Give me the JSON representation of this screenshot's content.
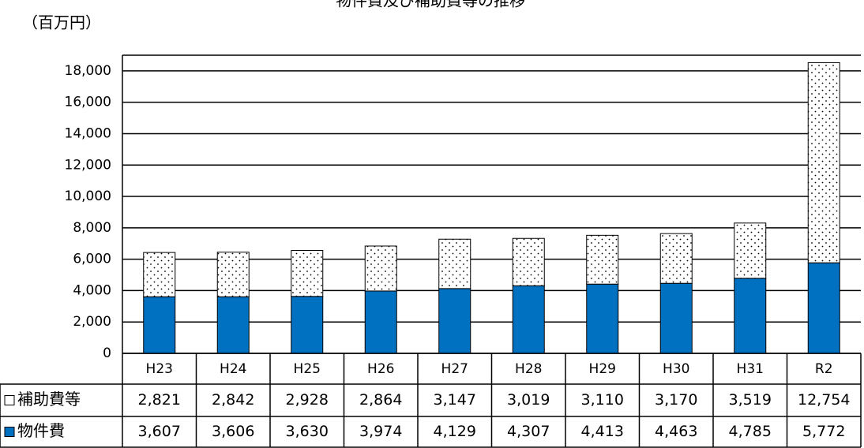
{
  "chart_data": {
    "type": "stacked_bar",
    "title": "物件費及び補助費等の推移",
    "y_label": "（百万円）",
    "categories": [
      "H23",
      "H24",
      "H25",
      "H26",
      "H27",
      "H28",
      "H29",
      "H30",
      "H31",
      "R2"
    ],
    "series": [
      {
        "name": "物件費",
        "color": "#0070c0",
        "values": [
          3607,
          3606,
          3630,
          3974,
          4129,
          4307,
          4413,
          4463,
          4785,
          5772
        ],
        "value_labels": [
          "3,607",
          "3,606",
          "3,630",
          "3,974",
          "4,129",
          "4,307",
          "4,413",
          "4,463",
          "4,785",
          "5,772"
        ]
      },
      {
        "name": "補助費等",
        "color": "#ffffff",
        "values": [
          2821,
          2842,
          2928,
          2864,
          3147,
          3019,
          3110,
          3170,
          3519,
          12754
        ],
        "value_labels": [
          "2,821",
          "2,842",
          "2,928",
          "2,864",
          "3,147",
          "3,019",
          "3,110",
          "3,170",
          "3,519",
          "12,754"
        ]
      }
    ],
    "ylim": [
      0,
      19000
    ],
    "yticks": [
      0,
      {
        "value": 2000,
        "label": "2,000"
      },
      {
        "value": 4000,
        "label": "4,000"
      },
      {
        "value": 6000,
        "label": "6,000"
      },
      {
        "value": 8000,
        "label": "8,000"
      },
      {
        "value": 10000,
        "label": "10,000"
      },
      {
        "value": 12000,
        "label": "12,000"
      },
      {
        "value": 14000,
        "label": "14,000"
      },
      {
        "value": 16000,
        "label": "16,000"
      },
      {
        "value": 18000,
        "label": "18,000"
      }
    ],
    "grid": true
  }
}
